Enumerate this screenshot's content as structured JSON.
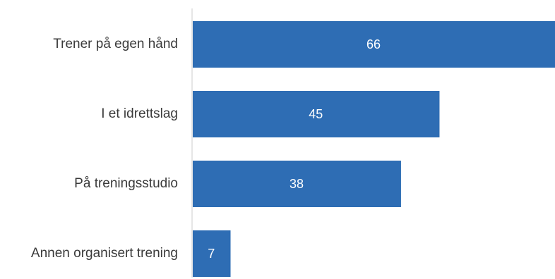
{
  "chart_data": {
    "type": "bar",
    "orientation": "horizontal",
    "categories": [
      "Trener på egen hånd",
      "I et idrettslag",
      "På treningsstudio",
      "Annen organisert trening"
    ],
    "values": [
      66,
      45,
      38,
      7
    ],
    "title": "",
    "xlabel": "",
    "ylabel": "",
    "xlim": [
      0,
      66
    ],
    "grid": false,
    "data_labels": true,
    "bar_color": "#2e6db4",
    "label_color": "#ffffff",
    "category_label_color": "#3a3a3a",
    "axis_color": "#cccccc"
  }
}
